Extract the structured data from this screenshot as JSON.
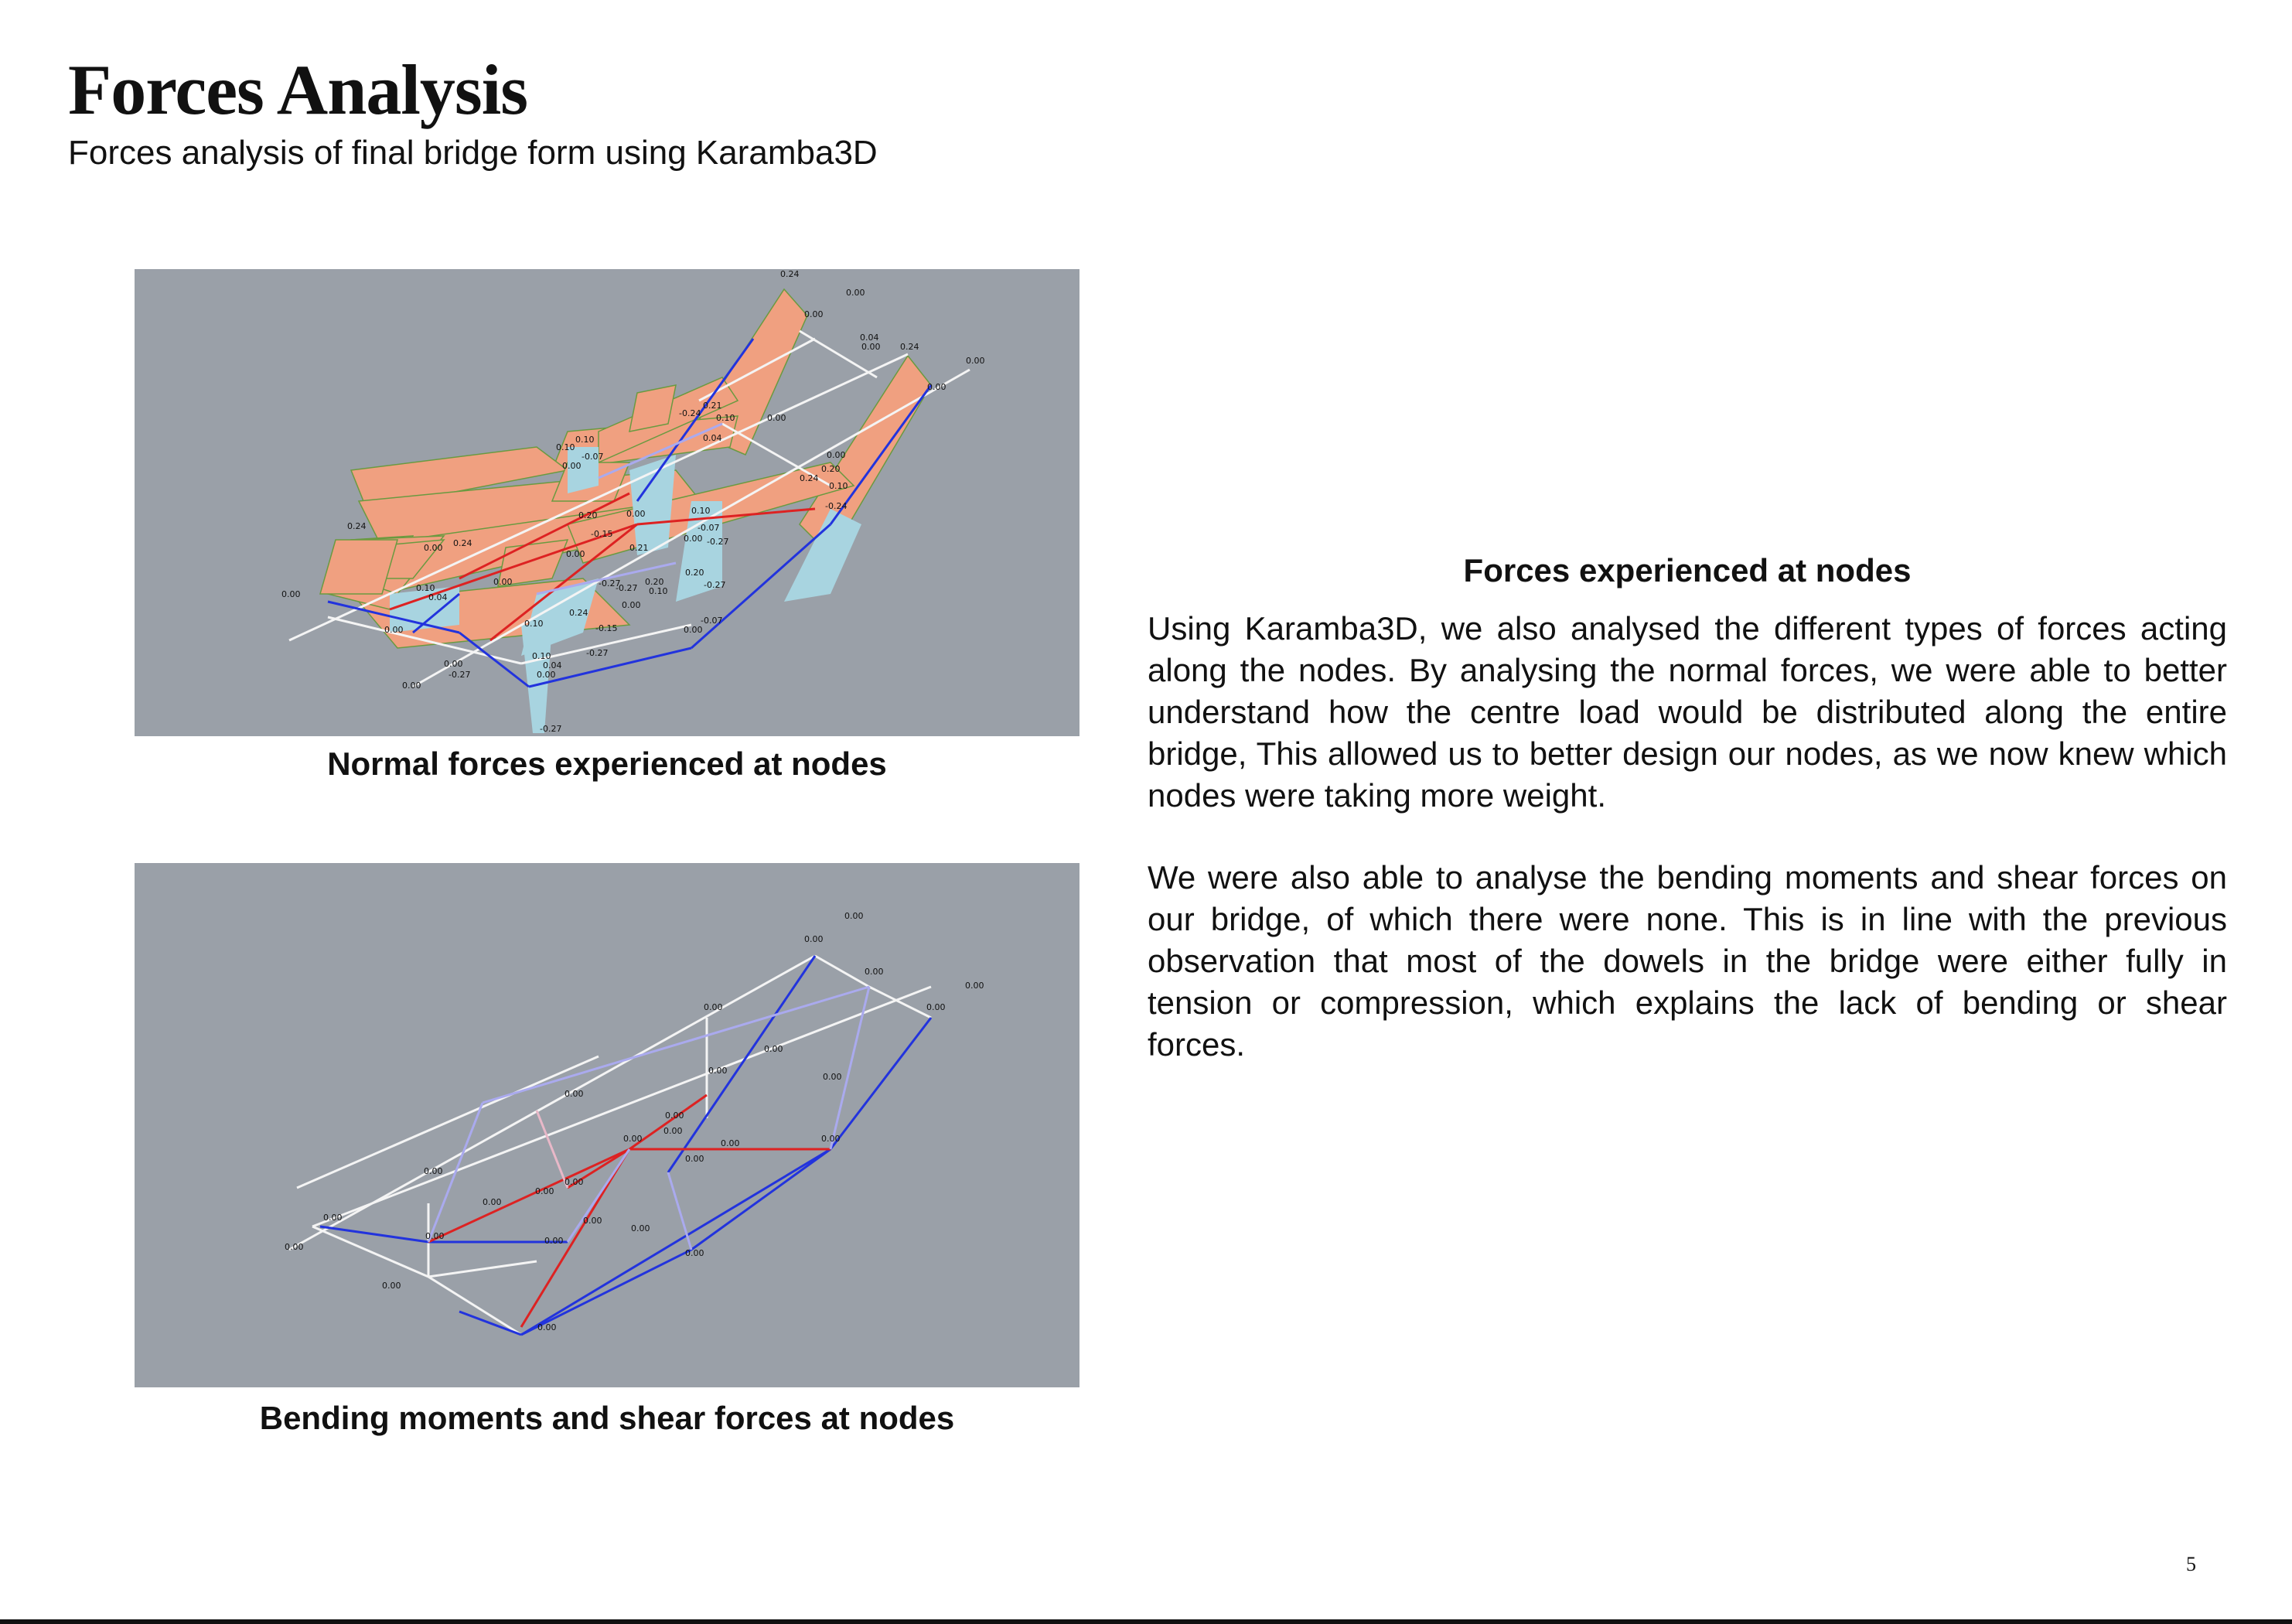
{
  "page": {
    "title": "Forces Analysis",
    "subtitle": "Forces analysis of final bridge form using Karamba3D",
    "page_number": "5"
  },
  "figures": [
    {
      "caption": "Normal forces experienced at nodes",
      "labels": [
        "0.24",
        "0.00",
        "0.00",
        "0.04",
        "0.24",
        "0.00",
        "0.00",
        "0.00",
        "0.21",
        "-0.24",
        "0.10",
        "0.00",
        "0.04",
        "0.10",
        "0.10",
        "-0.07",
        "0.00",
        "0.00",
        "0.20",
        "0.24",
        "0.10",
        "-0.24",
        "0.00",
        "0.20",
        "0.10",
        "-0.07",
        "0.00",
        "-0.27",
        "0.24",
        "0.00",
        "0.24",
        "0.00",
        "0.10",
        "-0.15",
        "0.21",
        "0.20",
        "-0.27",
        "0.10",
        "0.04",
        "0.00",
        "0.00",
        "-0.27",
        "0.20",
        "-0.27",
        "0.00",
        "0.00",
        "0.24",
        "0.10",
        "-0.15",
        "0.10",
        "-0.27",
        "0.04",
        "0.00",
        "-0.07",
        "0.00",
        "0.00",
        "-0.27",
        "-0.27",
        "0.00"
      ],
      "colors": {
        "background": "#9aa0a8",
        "compression": "#f0a080",
        "tension": "#a8d4e0",
        "member_blue": "#2233dd",
        "member_red": "#dd2222",
        "member_white": "#f4f4f4"
      }
    },
    {
      "caption": "Bending moments and shear forces at nodes",
      "labels": [
        "0.00",
        "0.00",
        "0.00",
        "0.00",
        "0.00",
        "0.00",
        "0.00",
        "0.00",
        "0.00",
        "0.00",
        "0.00",
        "0.00",
        "0.00",
        "0.00",
        "0.00",
        "0.00",
        "0.00",
        "0.00",
        "0.00",
        "0.00",
        "0.00",
        "0.00",
        "0.00",
        "0.00",
        "0.00",
        "0.00",
        "0.00",
        "0.00",
        "0.00"
      ],
      "colors": {
        "background": "#9aa0a8",
        "member_blue": "#2233dd",
        "member_red": "#dd2222",
        "member_white": "#f4f4f4",
        "member_lilac": "#aaaaee"
      }
    }
  ],
  "text": {
    "heading": "Forces experienced at nodes",
    "paragraph_1": "Using Karamba3D, we also analysed the different types of forces acting along the nodes. By analysing the normal forces, we were able to better understand how the centre load would be distributed along the entire bridge, This allowed us to better design our nodes, as we now knew which nodes were taking more weight.",
    "paragraph_2": "We were also able to analyse the bending moments and shear forces on our bridge, of which there were none. This is in line with the previous observation that most of the dowels in the bridge were either fully in tension or compression, which explains the lack of bending or shear forces."
  }
}
